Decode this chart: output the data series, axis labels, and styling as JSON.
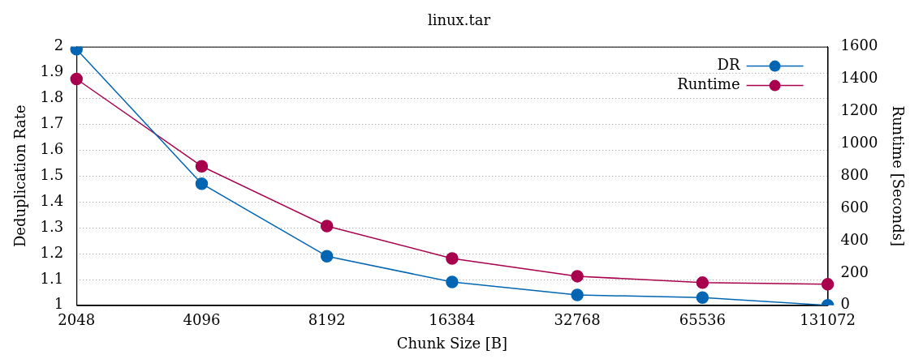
{
  "chart_data": {
    "type": "line",
    "title": "linux.tar",
    "xlabel": "Chunk Size [B]",
    "ylabel": "Deduplication Rate",
    "y2label": "Runtime [Seconds]",
    "categories": [
      "2048",
      "4096",
      "8192",
      "16384",
      "32768",
      "65536",
      "131072"
    ],
    "series": [
      {
        "name": "DR",
        "color": "#0066b3",
        "values": [
          1.99,
          1.47,
          1.19,
          1.09,
          1.04,
          1.03,
          1.0
        ]
      },
      {
        "name": "Runtime",
        "color": "#a8004d",
        "axis": "y2",
        "values": [
          1400,
          860,
          490,
          290,
          180,
          140,
          130
        ]
      }
    ],
    "ylim": [
      1,
      2
    ],
    "yticks": [
      1,
      1.1,
      1.2,
      1.3,
      1.4,
      1.5,
      1.6,
      1.7,
      1.8,
      1.9,
      2
    ],
    "y2lim": [
      0,
      1600
    ],
    "y2ticks": [
      0,
      200,
      400,
      600,
      800,
      1000,
      1200,
      1400,
      1600
    ],
    "grid": "y",
    "legend": "top right",
    "marker": "circle",
    "line_style": "solid"
  }
}
